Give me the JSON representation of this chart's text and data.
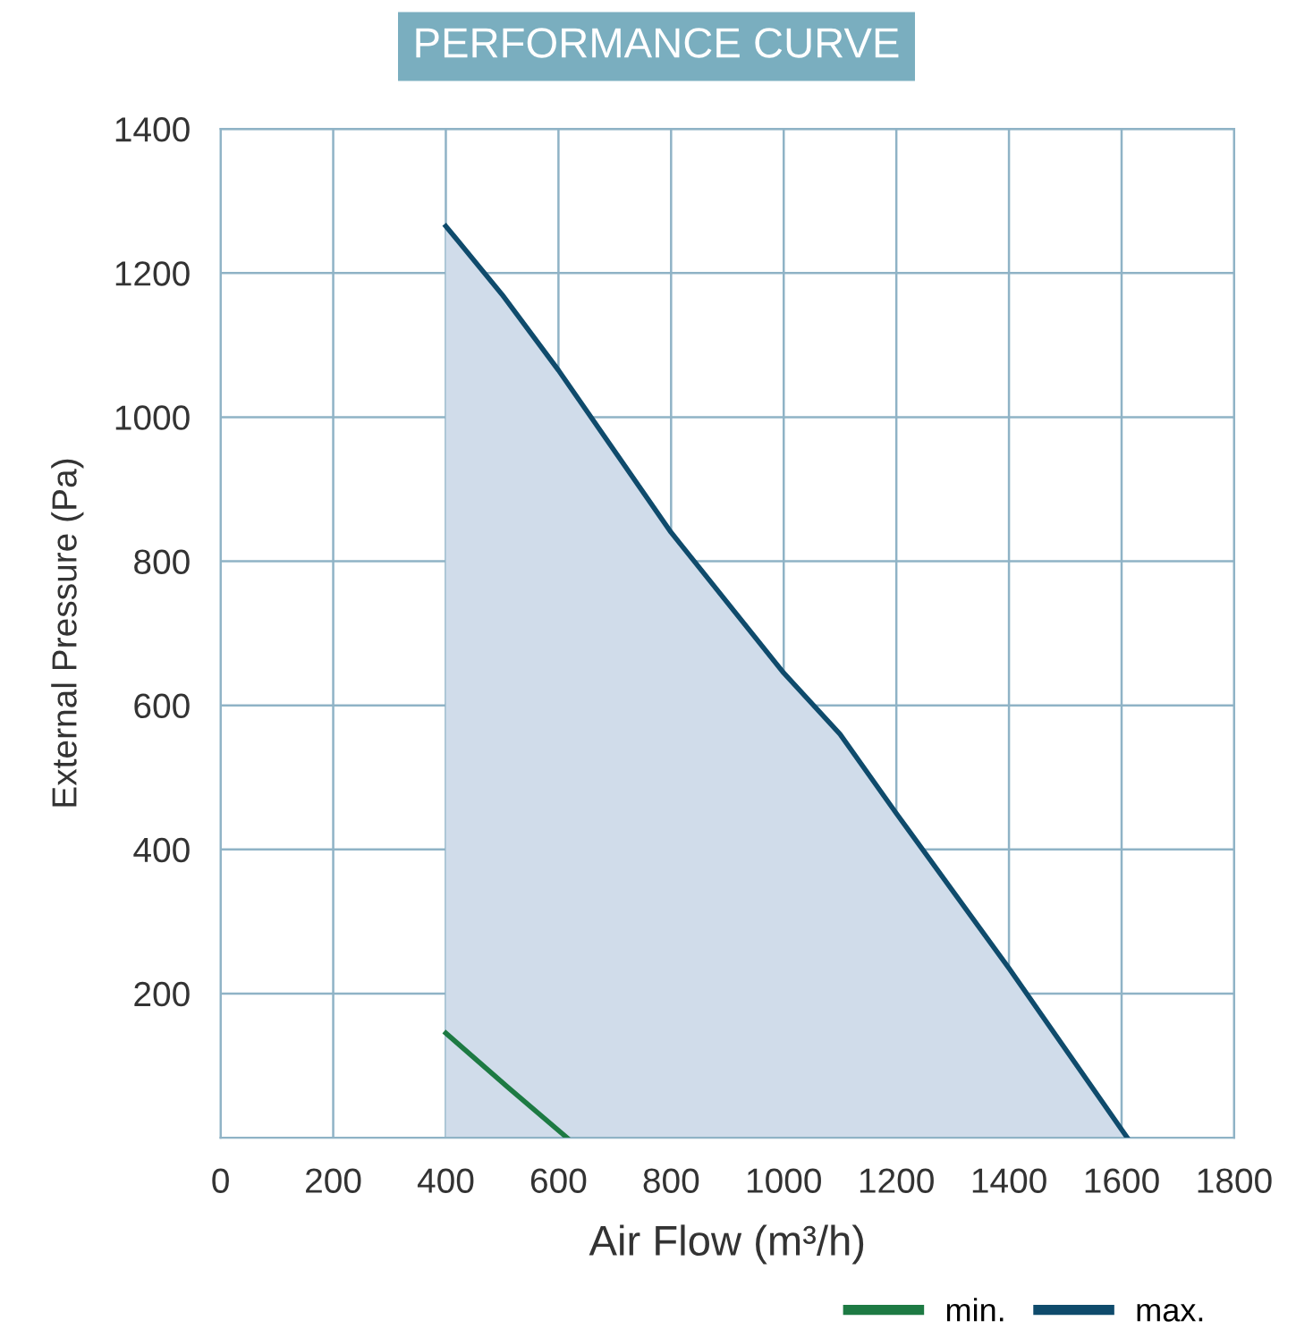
{
  "chart_data": {
    "type": "area",
    "title": "PERFORMANCE CURVE",
    "xlabel": "Air Flow (m³/h)",
    "ylabel": "External Pressure (Pa)",
    "xlim": [
      0,
      1800
    ],
    "xticks": [
      0,
      200,
      400,
      600,
      800,
      1000,
      1200,
      1400,
      1600,
      1800
    ],
    "ylim": [
      0,
      1400
    ],
    "yticks": [
      200,
      400,
      600,
      800,
      1000,
      1200,
      1400
    ],
    "grid": true,
    "legend": "bottom right",
    "series": [
      {
        "type": "line",
        "name": "min.",
        "color": "#1d7a43",
        "x": [
          400,
          510,
          615
        ],
        "values": [
          145,
          70,
          0
        ]
      },
      {
        "name": "max.",
        "color": "#0f4b6c",
        "x": [
          400,
          500,
          600,
          800,
          1000,
          1100,
          1200,
          1400,
          1610
        ],
        "values": [
          1265,
          1170,
          1065,
          840,
          645,
          560,
          450,
          235,
          0
        ]
      }
    ]
  }
}
